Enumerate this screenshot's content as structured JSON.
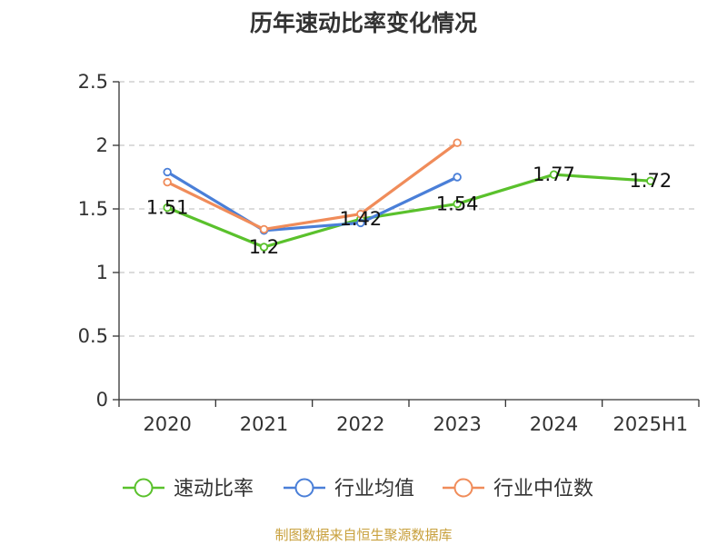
{
  "chart_data": {
    "type": "line",
    "title": "历年速动比率变化情况",
    "categories": [
      "2020",
      "2021",
      "2022",
      "2023",
      "2024",
      "2025H1"
    ],
    "y_ticks": [
      "0",
      "0.5",
      "1",
      "1.5",
      "2",
      "2.5"
    ],
    "ylim": [
      0,
      2.5
    ],
    "grid": true,
    "legend_position": "bottom",
    "series": [
      {
        "name": "速动比率",
        "color": "#5ac12c",
        "values": [
          1.51,
          1.2,
          1.42,
          1.54,
          1.77,
          1.72
        ],
        "labels": [
          "1.51",
          "1.2",
          "1.42",
          "1.54",
          "1.77",
          "1.72"
        ]
      },
      {
        "name": "行业均值",
        "color": "#4a7fd8",
        "values": [
          1.79,
          1.33,
          1.39,
          1.75,
          null,
          null
        ]
      },
      {
        "name": "行业中位数",
        "color": "#f08c5a",
        "values": [
          1.71,
          1.34,
          1.46,
          2.02,
          null,
          null
        ]
      }
    ]
  },
  "footer": {
    "source": "制图数据来自恒生聚源数据库"
  }
}
